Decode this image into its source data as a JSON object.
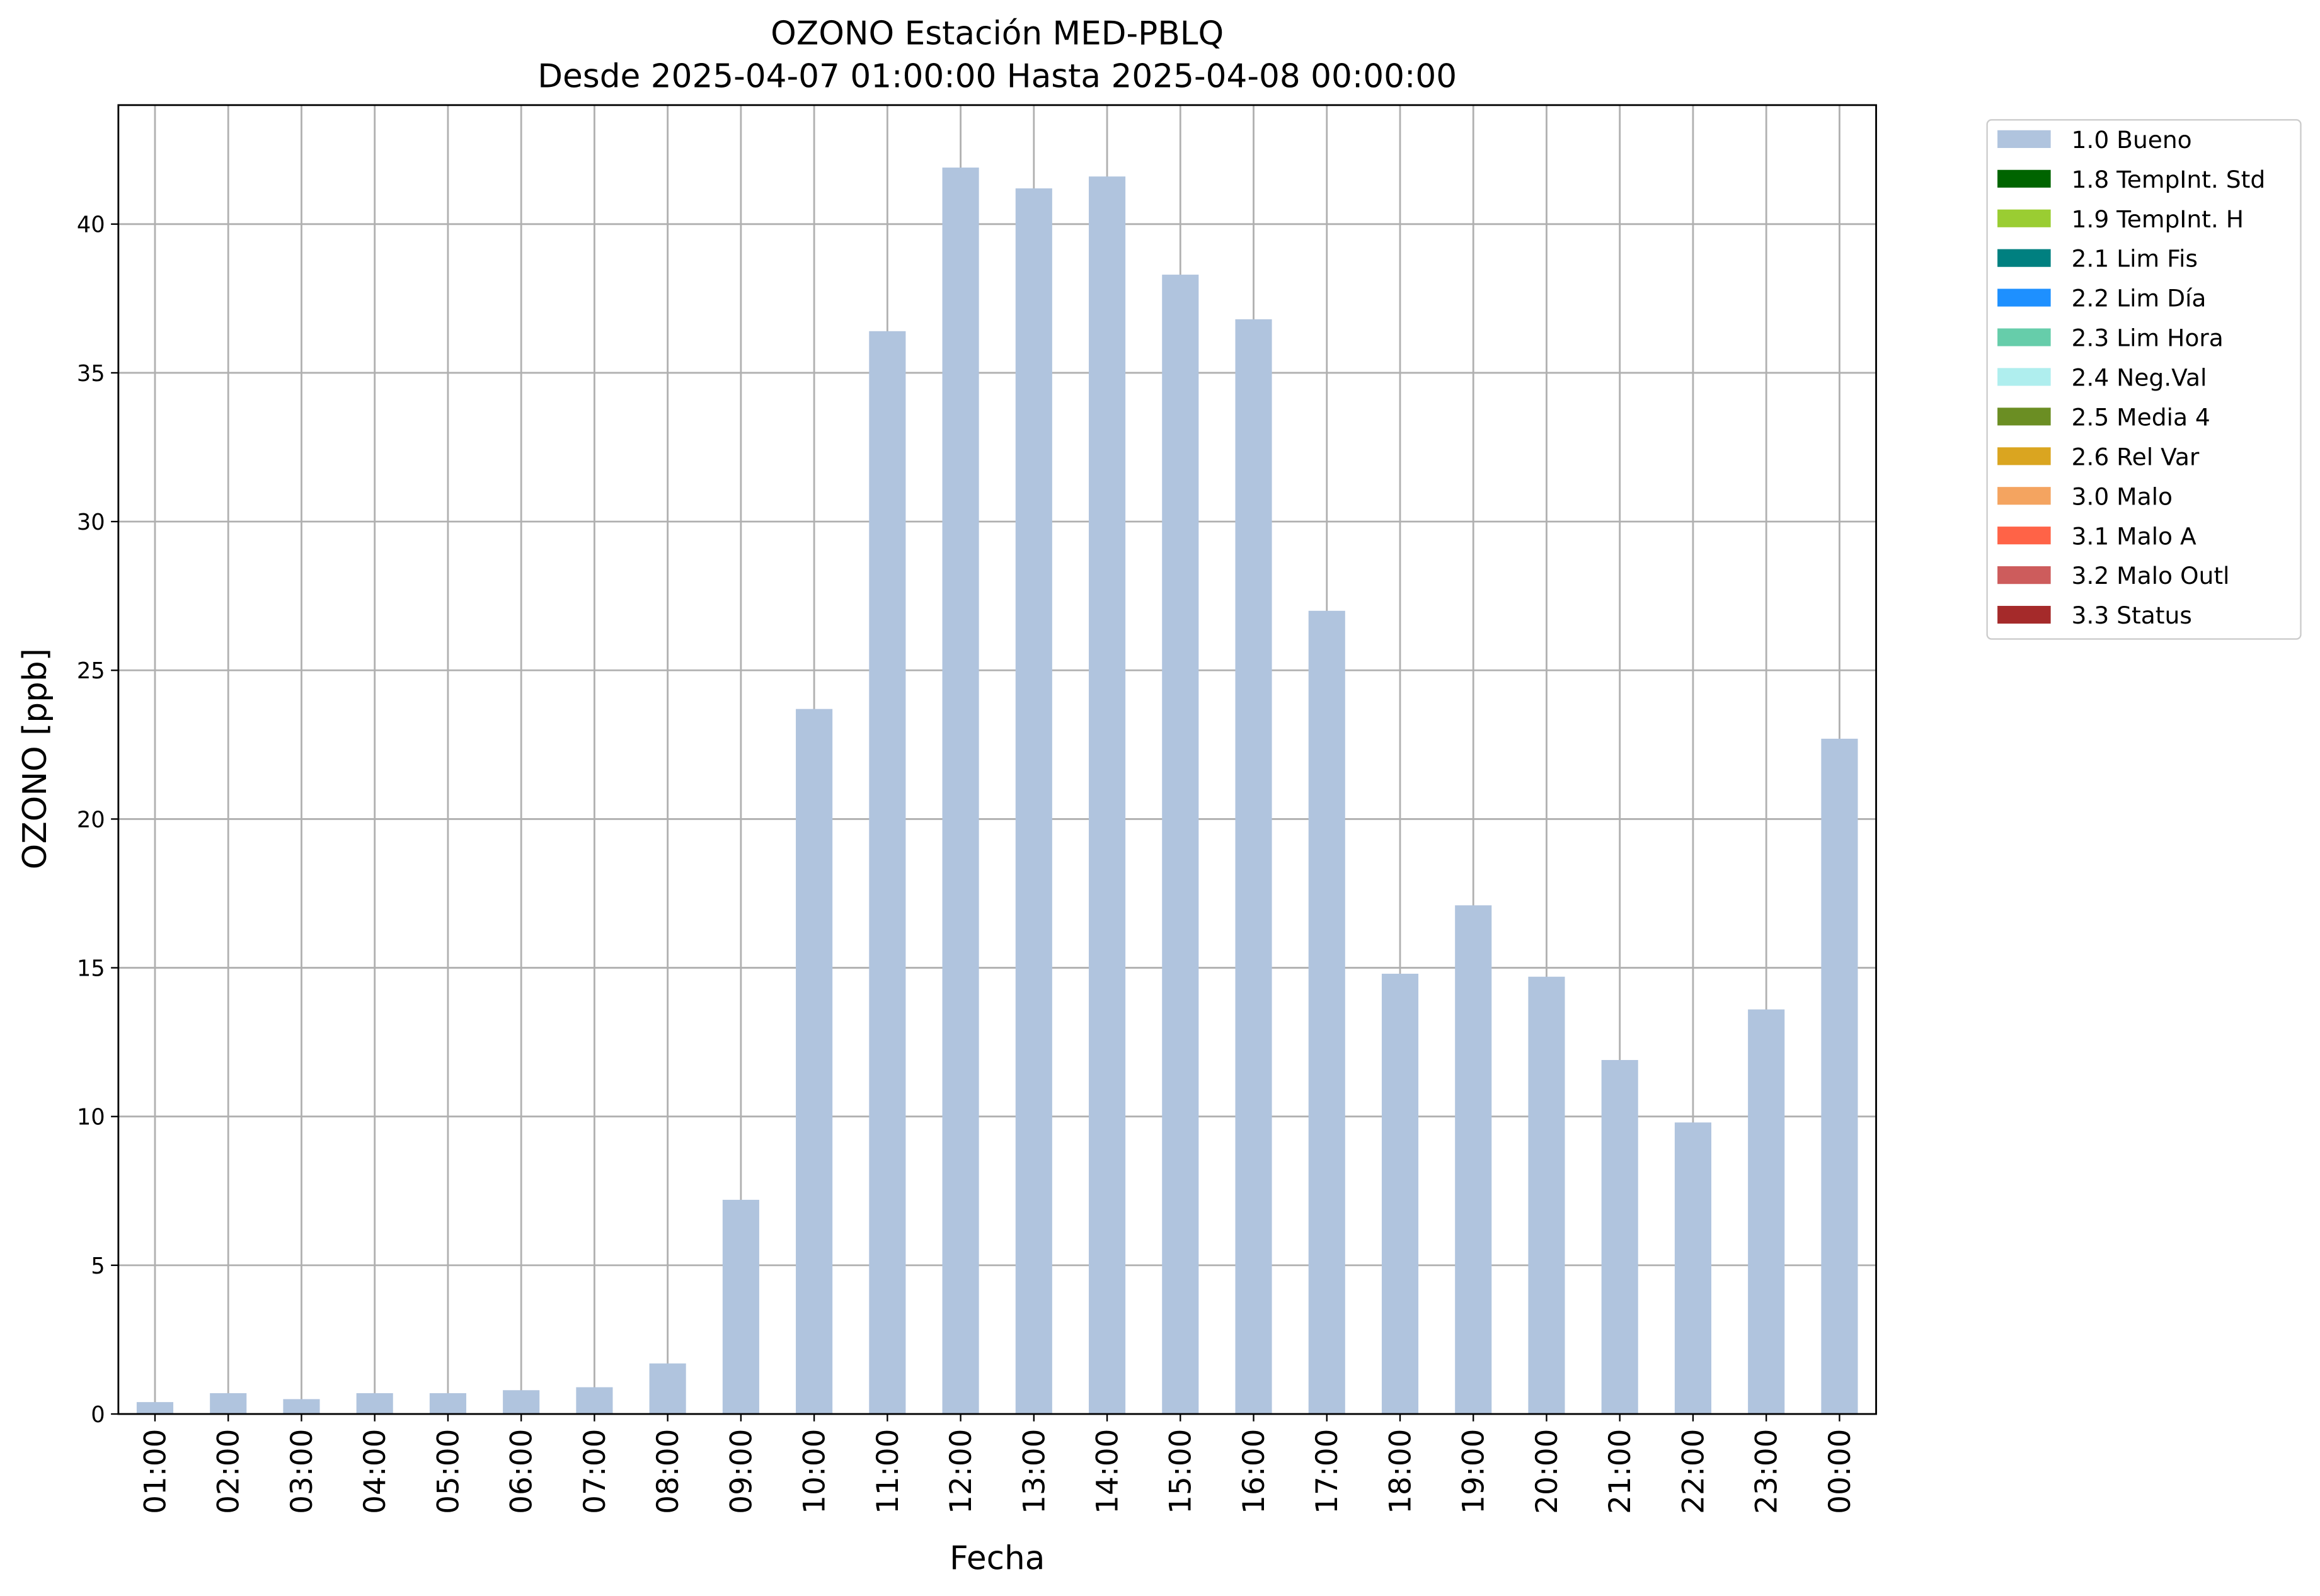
{
  "chart_data": {
    "type": "bar",
    "stacked": true,
    "title": "OZONO Estación MED-PBLQ",
    "subtitle": "Desde 2025-04-07 01:00:00 Hasta 2025-04-08 00:00:00",
    "xlabel": "Fecha",
    "ylabel": "OZONO [ppb]",
    "categories": [
      "01:00",
      "02:00",
      "03:00",
      "04:00",
      "05:00",
      "06:00",
      "07:00",
      "08:00",
      "09:00",
      "10:00",
      "11:00",
      "12:00",
      "13:00",
      "14:00",
      "15:00",
      "16:00",
      "17:00",
      "18:00",
      "19:00",
      "20:00",
      "21:00",
      "22:00",
      "23:00",
      "00:00"
    ],
    "series": [
      {
        "name": "1.0 Bueno",
        "color": "#b0c4de",
        "values": [
          0.4,
          0.7,
          0.5,
          0.7,
          0.7,
          0.8,
          0.9,
          1.7,
          7.2,
          23.7,
          36.4,
          41.9,
          41.2,
          41.6,
          38.3,
          36.8,
          27.0,
          14.8,
          17.1,
          14.7,
          11.9,
          9.8,
          13.6,
          22.7
        ]
      },
      {
        "name": "1.8 TempInt. Std",
        "color": "#006400",
        "values": [
          null,
          null,
          null,
          null,
          null,
          null,
          null,
          null,
          null,
          null,
          null,
          null,
          null,
          null,
          null,
          null,
          null,
          null,
          null,
          null,
          null,
          null,
          null,
          null
        ]
      },
      {
        "name": "1.9 TempInt. H",
        "color": "#9acd32",
        "values": [
          null,
          null,
          null,
          null,
          null,
          null,
          null,
          null,
          null,
          null,
          null,
          null,
          null,
          null,
          null,
          null,
          null,
          null,
          null,
          null,
          null,
          null,
          null,
          null
        ]
      },
      {
        "name": "2.1 Lim Fis",
        "color": "#008080",
        "values": [
          null,
          null,
          null,
          null,
          null,
          null,
          null,
          null,
          null,
          null,
          null,
          null,
          null,
          null,
          null,
          null,
          null,
          null,
          null,
          null,
          null,
          null,
          null,
          null
        ]
      },
      {
        "name": "2.2 Lim Día",
        "color": "#1e90ff",
        "values": [
          null,
          null,
          null,
          null,
          null,
          null,
          null,
          null,
          null,
          null,
          null,
          null,
          null,
          null,
          null,
          null,
          null,
          null,
          null,
          null,
          null,
          null,
          null,
          null
        ]
      },
      {
        "name": "2.3 Lim Hora",
        "color": "#66cdaa",
        "values": [
          null,
          null,
          null,
          null,
          null,
          null,
          null,
          null,
          null,
          null,
          null,
          null,
          null,
          null,
          null,
          null,
          null,
          null,
          null,
          null,
          null,
          null,
          null,
          null
        ]
      },
      {
        "name": "2.4 Neg.Val",
        "color": "#afeeee",
        "values": [
          null,
          null,
          null,
          null,
          null,
          null,
          null,
          null,
          null,
          null,
          null,
          null,
          null,
          null,
          null,
          null,
          null,
          null,
          null,
          null,
          null,
          null,
          null,
          null
        ]
      },
      {
        "name": "2.5 Media 4",
        "color": "#6b8e23",
        "values": [
          null,
          null,
          null,
          null,
          null,
          null,
          null,
          null,
          null,
          null,
          null,
          null,
          null,
          null,
          null,
          null,
          null,
          null,
          null,
          null,
          null,
          null,
          null,
          null
        ]
      },
      {
        "name": "2.6 Rel Var",
        "color": "#daa520",
        "values": [
          null,
          null,
          null,
          null,
          null,
          null,
          null,
          null,
          null,
          null,
          null,
          null,
          null,
          null,
          null,
          null,
          null,
          null,
          null,
          null,
          null,
          null,
          null,
          null
        ]
      },
      {
        "name": "3.0 Malo",
        "color": "#f4a460",
        "values": [
          null,
          null,
          null,
          null,
          null,
          null,
          null,
          null,
          null,
          null,
          null,
          null,
          null,
          null,
          null,
          null,
          null,
          null,
          null,
          null,
          null,
          null,
          null,
          null
        ]
      },
      {
        "name": "3.1 Malo A",
        "color": "#ff6347",
        "values": [
          null,
          null,
          null,
          null,
          null,
          null,
          null,
          null,
          null,
          null,
          null,
          null,
          null,
          null,
          null,
          null,
          null,
          null,
          null,
          null,
          null,
          null,
          null,
          null
        ]
      },
      {
        "name": "3.2 Malo Outl",
        "color": "#cd5c5c",
        "values": [
          null,
          null,
          null,
          null,
          null,
          null,
          null,
          null,
          null,
          null,
          null,
          null,
          null,
          null,
          null,
          null,
          null,
          null,
          null,
          null,
          null,
          null,
          null,
          null
        ]
      },
      {
        "name": "3.3 Status",
        "color": "#a52a2a",
        "values": [
          null,
          null,
          null,
          null,
          null,
          null,
          null,
          null,
          null,
          null,
          null,
          null,
          null,
          null,
          null,
          null,
          null,
          null,
          null,
          null,
          null,
          null,
          null,
          null
        ]
      }
    ],
    "ylim": [
      0,
      44
    ],
    "yticks": [
      0,
      5,
      10,
      15,
      20,
      25,
      30,
      35,
      40
    ],
    "grid": true,
    "legend": "outside upper right"
  }
}
